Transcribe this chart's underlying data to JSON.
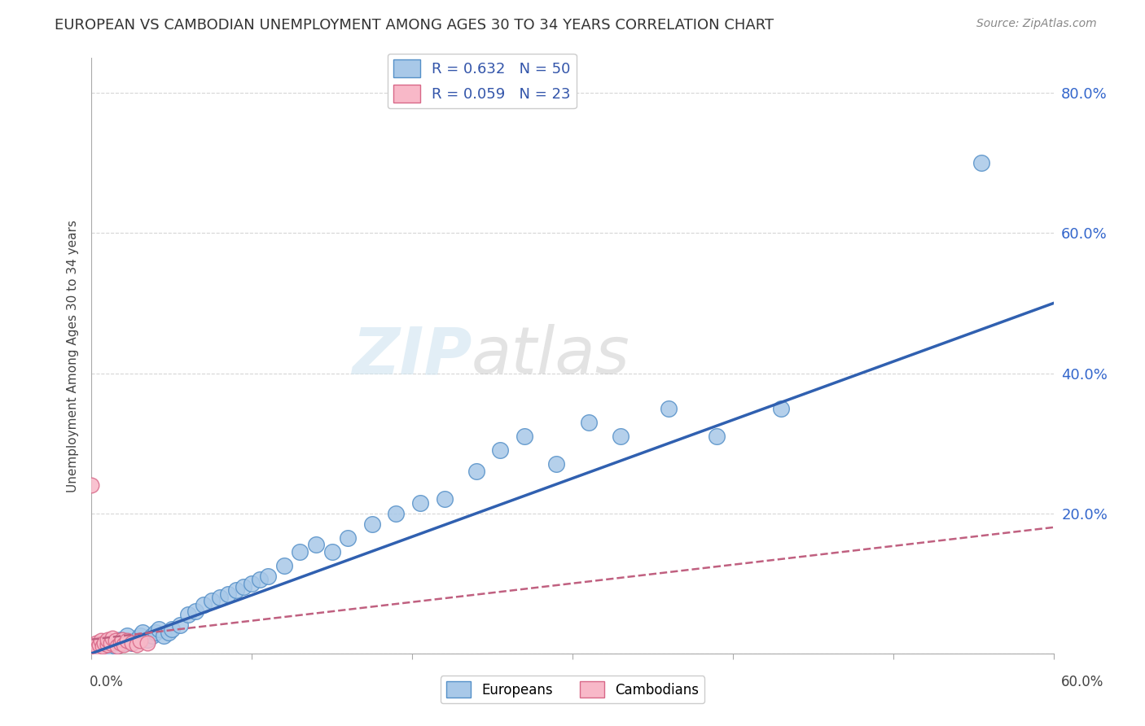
{
  "title": "EUROPEAN VS CAMBODIAN UNEMPLOYMENT AMONG AGES 30 TO 34 YEARS CORRELATION CHART",
  "source": "Source: ZipAtlas.com",
  "ylabel": "Unemployment Among Ages 30 to 34 years",
  "x_min": 0.0,
  "x_max": 0.6,
  "y_min": 0.0,
  "y_max": 0.85,
  "european_R": 0.632,
  "european_N": 50,
  "cambodian_R": 0.059,
  "cambodian_N": 23,
  "legend_label_eu": "Europeans",
  "legend_label_cam": "Cambodians",
  "european_color": "#a8c8e8",
  "european_edge_color": "#5590c8",
  "cambodian_color": "#f8b8c8",
  "cambodian_edge_color": "#d86888",
  "regression_eu_color": "#3060b0",
  "regression_cam_color": "#c06080",
  "background_color": "#ffffff",
  "grid_color": "#cccccc",
  "title_fontsize": 13,
  "source_fontsize": 10,
  "legend_fontsize": 13,
  "eu_x": [
    0.005,
    0.008,
    0.01,
    0.012,
    0.015,
    0.018,
    0.02,
    0.022,
    0.025,
    0.028,
    0.03,
    0.032,
    0.035,
    0.038,
    0.04,
    0.042,
    0.045,
    0.048,
    0.05,
    0.055,
    0.06,
    0.065,
    0.07,
    0.075,
    0.08,
    0.085,
    0.09,
    0.095,
    0.1,
    0.105,
    0.11,
    0.12,
    0.13,
    0.14,
    0.15,
    0.16,
    0.175,
    0.19,
    0.205,
    0.22,
    0.24,
    0.255,
    0.27,
    0.29,
    0.31,
    0.33,
    0.36,
    0.39,
    0.43,
    0.555
  ],
  "eu_y": [
    0.005,
    0.01,
    0.005,
    0.015,
    0.01,
    0.02,
    0.015,
    0.025,
    0.015,
    0.02,
    0.025,
    0.03,
    0.02,
    0.025,
    0.03,
    0.035,
    0.025,
    0.03,
    0.035,
    0.04,
    0.055,
    0.06,
    0.07,
    0.075,
    0.08,
    0.085,
    0.09,
    0.095,
    0.1,
    0.105,
    0.11,
    0.125,
    0.145,
    0.155,
    0.145,
    0.165,
    0.185,
    0.2,
    0.215,
    0.22,
    0.26,
    0.29,
    0.31,
    0.27,
    0.33,
    0.31,
    0.35,
    0.31,
    0.35,
    0.7
  ],
  "cam_x": [
    0.0,
    0.002,
    0.003,
    0.004,
    0.005,
    0.006,
    0.007,
    0.008,
    0.01,
    0.01,
    0.012,
    0.013,
    0.015,
    0.016,
    0.018,
    0.019,
    0.02,
    0.022,
    0.025,
    0.028,
    0.03,
    0.035,
    0.0
  ],
  "cam_y": [
    0.005,
    0.01,
    0.015,
    0.008,
    0.012,
    0.018,
    0.01,
    0.015,
    0.012,
    0.02,
    0.015,
    0.022,
    0.018,
    0.01,
    0.015,
    0.02,
    0.012,
    0.018,
    0.015,
    0.012,
    0.018,
    0.015,
    0.24
  ]
}
